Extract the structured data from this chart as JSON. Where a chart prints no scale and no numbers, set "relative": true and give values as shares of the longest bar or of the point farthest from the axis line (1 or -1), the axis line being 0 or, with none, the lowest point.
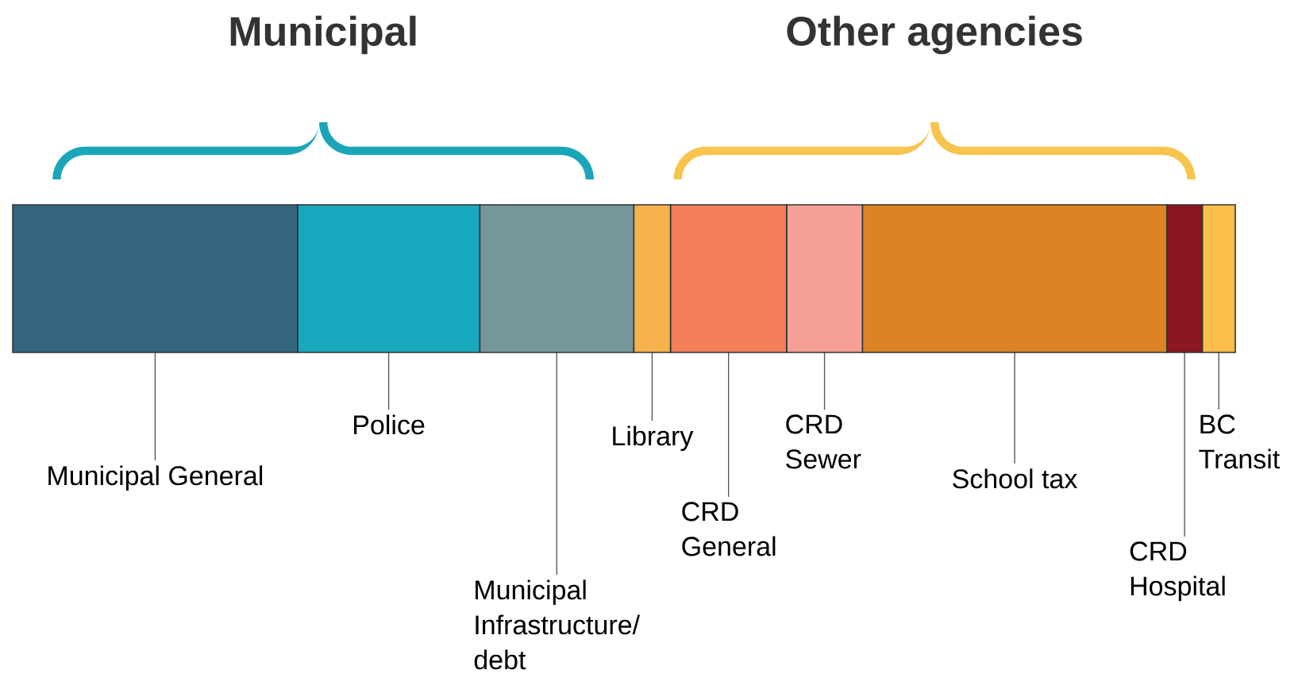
{
  "chart_data": {
    "type": "bar",
    "orientation": "horizontal",
    "stacked": true,
    "relative": true,
    "categories": [
      null
    ],
    "series": [
      {
        "name": "Municipal General",
        "color": "#336580",
        "values": [
          0.233
        ]
      },
      {
        "name": "Police",
        "color": "#18a8be",
        "values": [
          0.149
        ]
      },
      {
        "name": "Municipal Infrastructure/ debt",
        "color": "#75969a",
        "values": [
          0.126
        ]
      },
      {
        "name": "Library",
        "color": "#f6b24c",
        "values": [
          0.03
        ]
      },
      {
        "name": "CRD General",
        "color": "#f27e5a",
        "values": [
          0.095
        ]
      },
      {
        "name": "CRD Sewer",
        "color": "#f5a096",
        "values": [
          0.062
        ]
      },
      {
        "name": "School tax",
        "color": "#dc8325",
        "values": [
          0.249
        ]
      },
      {
        "name": "CRD Hospital",
        "color": "#8b1721",
        "values": [
          0.029
        ]
      },
      {
        "name": "BC Transit",
        "color": "#fcbe48",
        "values": [
          0.027
        ]
      }
    ],
    "annotations": [
      "Municipal",
      "Other agencies"
    ]
  }
}
